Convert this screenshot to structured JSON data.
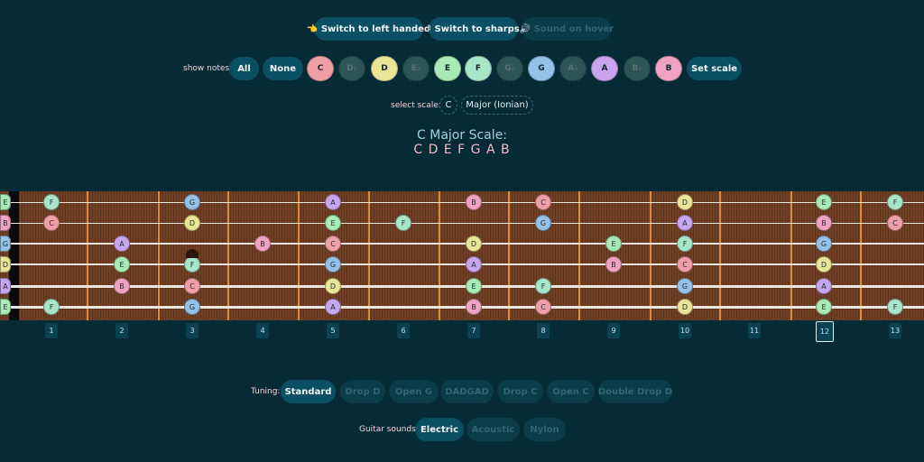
{
  "colors": {
    "C": "#ef9fa6",
    "D": "#eae596",
    "E": "#a8eab3",
    "F": "#a7e6c9",
    "G": "#95c1e6",
    "A": "#c8a5ee",
    "B": "#f0a2c2",
    "dimSharp": "#2c5459"
  },
  "toolbar": {
    "left_handed": "👈 Switch to left handed",
    "sharps": "♯ Switch to sharps",
    "hover": "🔊 Sound on hover"
  },
  "notes_bar": {
    "label": "show notes:",
    "all": "All",
    "none": "None",
    "set_scale": "Set scale",
    "chips": [
      {
        "label": "C",
        "color": "C"
      },
      {
        "label": "D♭",
        "color": "dimSharp",
        "dim": true
      },
      {
        "label": "D",
        "color": "D"
      },
      {
        "label": "E♭",
        "color": "dimSharp",
        "dim": true
      },
      {
        "label": "E",
        "color": "E"
      },
      {
        "label": "F",
        "color": "F"
      },
      {
        "label": "G♭",
        "color": "dimSharp",
        "dim": true
      },
      {
        "label": "G",
        "color": "G"
      },
      {
        "label": "A♭",
        "color": "dimSharp",
        "dim": true
      },
      {
        "label": "A",
        "color": "A"
      },
      {
        "label": "B♭",
        "color": "dimSharp",
        "dim": true
      },
      {
        "label": "B",
        "color": "B"
      }
    ]
  },
  "scale_select": {
    "label": "select scale:",
    "root": "C",
    "mode": "Major (Ionian)"
  },
  "scale_heading": {
    "title": "C Major Scale:",
    "notes": "C D E F G A B"
  },
  "fretboard": {
    "open_notes": [
      "E",
      "B",
      "G",
      "D",
      "A",
      "E"
    ],
    "strings": [
      {
        "notes": [
          [
            1,
            "F"
          ],
          [
            3,
            "G"
          ],
          [
            5,
            "A"
          ],
          [
            7,
            "B"
          ],
          [
            8,
            "C"
          ],
          [
            10,
            "D"
          ],
          [
            12,
            "E"
          ],
          [
            13,
            "F"
          ]
        ]
      },
      {
        "notes": [
          [
            1,
            "C"
          ],
          [
            3,
            "D"
          ],
          [
            5,
            "E"
          ],
          [
            6,
            "F"
          ],
          [
            8,
            "G"
          ],
          [
            10,
            "A"
          ],
          [
            12,
            "B"
          ],
          [
            13,
            "C"
          ]
        ]
      },
      {
        "notes": [
          [
            2,
            "A"
          ],
          [
            4,
            "B"
          ],
          [
            5,
            "C"
          ],
          [
            7,
            "D"
          ],
          [
            9,
            "E"
          ],
          [
            10,
            "F"
          ],
          [
            12,
            "G"
          ]
        ]
      },
      {
        "notes": [
          [
            2,
            "E"
          ],
          [
            3,
            "F"
          ],
          [
            5,
            "G"
          ],
          [
            7,
            "A"
          ],
          [
            9,
            "B"
          ],
          [
            10,
            "C"
          ],
          [
            12,
            "D"
          ]
        ]
      },
      {
        "notes": [
          [
            2,
            "B"
          ],
          [
            3,
            "C"
          ],
          [
            5,
            "D"
          ],
          [
            7,
            "E"
          ],
          [
            8,
            "F"
          ],
          [
            10,
            "G"
          ],
          [
            12,
            "A"
          ]
        ]
      },
      {
        "notes": [
          [
            1,
            "F"
          ],
          [
            3,
            "G"
          ],
          [
            5,
            "A"
          ],
          [
            7,
            "B"
          ],
          [
            8,
            "C"
          ],
          [
            10,
            "D"
          ],
          [
            12,
            "E"
          ],
          [
            13,
            "F"
          ]
        ]
      }
    ],
    "fret_numbers": [
      "1",
      "2",
      "3",
      "4",
      "5",
      "6",
      "7",
      "8",
      "9",
      "10",
      "11",
      "12",
      "13"
    ],
    "selected_fret": "12"
  },
  "tuning": {
    "label": "Tuning:",
    "options": [
      "Standard",
      "Drop D",
      "Open G",
      "DADGAD",
      "Drop C",
      "Open C",
      "Double Drop D"
    ],
    "selected": "Standard"
  },
  "sounds": {
    "label": "Guitar sounds:",
    "options": [
      "Electric",
      "Acoustic",
      "Nylon"
    ],
    "selected": "Electric"
  }
}
